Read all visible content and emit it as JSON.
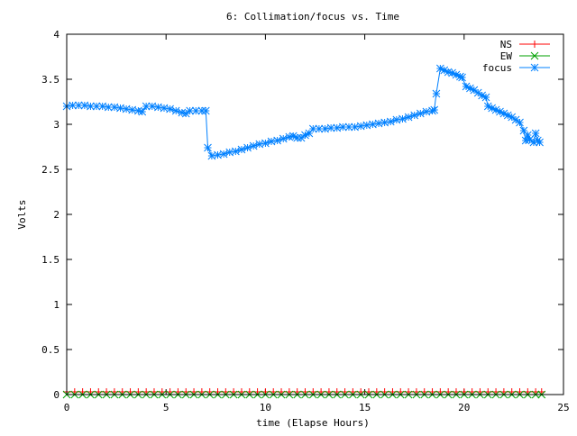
{
  "chart_data": {
    "type": "line",
    "title": "6: Collimation/focus vs. Time",
    "xlabel": "time (Elapse Hours)",
    "ylabel": "Volts",
    "xlim": [
      0,
      25
    ],
    "ylim": [
      0,
      4
    ],
    "x_ticks": [
      "0",
      "5",
      "10",
      "15",
      "20",
      "25"
    ],
    "y_ticks": [
      "0",
      "0.5",
      "1",
      "1.5",
      "2",
      "2.5",
      "3",
      "3.5",
      "4"
    ],
    "grid": false,
    "legend_position": "top-right",
    "series": [
      {
        "name": "NS",
        "color": "#ff0000",
        "marker": "plus",
        "x": [
          0.0,
          0.4,
          0.8,
          1.2,
          1.6,
          2.0,
          2.4,
          2.8,
          3.2,
          3.6,
          4.0,
          4.4,
          4.8,
          5.2,
          5.6,
          6.0,
          6.4,
          6.8,
          7.2,
          7.6,
          8.0,
          8.4,
          8.8,
          9.2,
          9.6,
          10.0,
          10.4,
          10.8,
          11.2,
          11.6,
          12.0,
          12.4,
          12.8,
          13.2,
          13.6,
          14.0,
          14.4,
          14.8,
          15.2,
          15.6,
          16.0,
          16.4,
          16.8,
          17.2,
          17.6,
          18.0,
          18.4,
          18.8,
          19.2,
          19.6,
          20.0,
          20.4,
          20.8,
          21.2,
          21.6,
          22.0,
          22.4,
          22.8,
          23.2,
          23.6,
          23.9
        ],
        "y": [
          0.03,
          0.03,
          0.03,
          0.03,
          0.03,
          0.03,
          0.03,
          0.03,
          0.03,
          0.03,
          0.03,
          0.03,
          0.03,
          0.03,
          0.03,
          0.03,
          0.03,
          0.03,
          0.03,
          0.03,
          0.03,
          0.03,
          0.03,
          0.03,
          0.03,
          0.03,
          0.03,
          0.03,
          0.03,
          0.03,
          0.03,
          0.03,
          0.03,
          0.03,
          0.03,
          0.03,
          0.03,
          0.03,
          0.03,
          0.03,
          0.03,
          0.03,
          0.03,
          0.03,
          0.03,
          0.03,
          0.03,
          0.03,
          0.03,
          0.03,
          0.03,
          0.03,
          0.03,
          0.03,
          0.03,
          0.03,
          0.03,
          0.03,
          0.03,
          0.03,
          0.03
        ]
      },
      {
        "name": "EW",
        "color": "#00a000",
        "marker": "cross",
        "x": [
          0.0,
          0.4,
          0.8,
          1.2,
          1.6,
          2.0,
          2.4,
          2.8,
          3.2,
          3.6,
          4.0,
          4.4,
          4.8,
          5.2,
          5.6,
          6.0,
          6.4,
          6.8,
          7.2,
          7.6,
          8.0,
          8.4,
          8.8,
          9.2,
          9.6,
          10.0,
          10.4,
          10.8,
          11.2,
          11.6,
          12.0,
          12.4,
          12.8,
          13.2,
          13.6,
          14.0,
          14.4,
          14.8,
          15.2,
          15.6,
          16.0,
          16.4,
          16.8,
          17.2,
          17.6,
          18.0,
          18.4,
          18.8,
          19.2,
          19.6,
          20.0,
          20.4,
          20.8,
          21.2,
          21.6,
          22.0,
          22.4,
          22.8,
          23.2,
          23.6,
          23.9
        ],
        "y": [
          0.0,
          0.0,
          0.0,
          0.0,
          0.0,
          0.0,
          0.0,
          0.0,
          0.0,
          0.0,
          0.0,
          0.0,
          0.0,
          0.0,
          0.0,
          0.0,
          0.0,
          0.0,
          0.0,
          0.0,
          0.0,
          0.0,
          0.0,
          0.0,
          0.0,
          0.0,
          0.0,
          0.0,
          0.0,
          0.0,
          0.0,
          0.0,
          0.0,
          0.0,
          0.0,
          0.0,
          0.0,
          0.0,
          0.0,
          0.0,
          0.0,
          0.0,
          0.0,
          0.0,
          0.0,
          0.0,
          0.0,
          0.0,
          0.0,
          0.0,
          0.0,
          0.0,
          0.0,
          0.0,
          0.0,
          0.0,
          0.0,
          0.0,
          0.0,
          0.0,
          0.0
        ]
      },
      {
        "name": "focus",
        "color": "#0080ff",
        "marker": "star",
        "x": [
          0.0,
          0.3,
          0.6,
          0.9,
          1.2,
          1.5,
          1.8,
          2.1,
          2.4,
          2.7,
          3.0,
          3.3,
          3.6,
          3.8,
          4.0,
          4.3,
          4.6,
          4.9,
          5.2,
          5.5,
          5.8,
          6.0,
          6.2,
          6.5,
          6.8,
          7.0,
          7.1,
          7.3,
          7.6,
          7.9,
          8.2,
          8.5,
          8.8,
          9.1,
          9.4,
          9.7,
          10.0,
          10.3,
          10.6,
          10.9,
          11.2,
          11.4,
          11.6,
          11.8,
          12.0,
          12.2,
          12.4,
          12.7,
          13.0,
          13.3,
          13.6,
          13.9,
          14.2,
          14.5,
          14.8,
          15.1,
          15.4,
          15.7,
          16.0,
          16.3,
          16.6,
          16.9,
          17.2,
          17.5,
          17.8,
          18.1,
          18.4,
          18.5,
          18.6,
          18.8,
          19.0,
          19.2,
          19.4,
          19.6,
          19.8,
          19.9,
          20.1,
          20.3,
          20.5,
          20.7,
          20.9,
          21.1,
          21.2,
          21.4,
          21.6,
          21.8,
          22.0,
          22.2,
          22.4,
          22.6,
          22.8,
          23.0,
          23.1,
          23.2,
          23.3,
          23.5,
          23.6,
          23.7,
          23.8
        ],
        "y": [
          3.2,
          3.21,
          3.21,
          3.21,
          3.2,
          3.2,
          3.2,
          3.19,
          3.19,
          3.18,
          3.17,
          3.16,
          3.15,
          3.14,
          3.2,
          3.2,
          3.19,
          3.18,
          3.17,
          3.15,
          3.13,
          3.12,
          3.15,
          3.15,
          3.15,
          3.15,
          2.74,
          2.65,
          2.66,
          2.67,
          2.69,
          2.7,
          2.72,
          2.74,
          2.76,
          2.78,
          2.79,
          2.81,
          2.82,
          2.84,
          2.86,
          2.87,
          2.85,
          2.85,
          2.88,
          2.9,
          2.95,
          2.95,
          2.95,
          2.96,
          2.96,
          2.97,
          2.97,
          2.97,
          2.98,
          2.99,
          3.0,
          3.01,
          3.02,
          3.03,
          3.05,
          3.06,
          3.08,
          3.1,
          3.12,
          3.14,
          3.15,
          3.16,
          3.34,
          3.62,
          3.6,
          3.58,
          3.57,
          3.55,
          3.53,
          3.52,
          3.42,
          3.4,
          3.38,
          3.35,
          3.32,
          3.3,
          3.2,
          3.18,
          3.16,
          3.14,
          3.12,
          3.1,
          3.08,
          3.05,
          3.02,
          2.93,
          2.82,
          2.88,
          2.83,
          2.8,
          2.9,
          2.82,
          2.8
        ]
      }
    ]
  }
}
